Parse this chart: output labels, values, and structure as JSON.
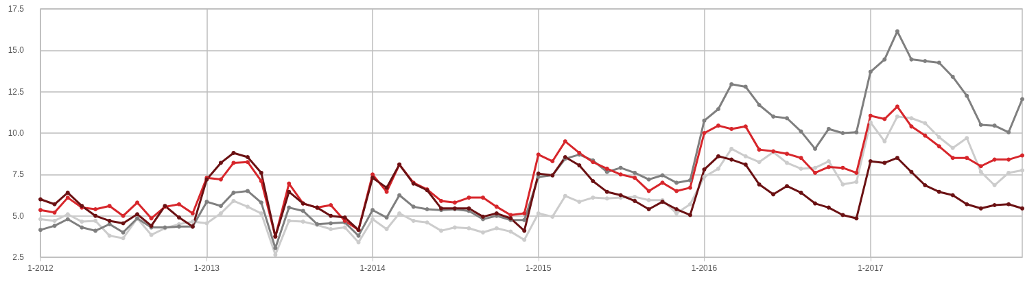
{
  "chart_data": {
    "type": "line",
    "x": [
      "2012-01",
      "2012-02",
      "2012-03",
      "2012-04",
      "2012-05",
      "2012-06",
      "2012-07",
      "2012-08",
      "2012-09",
      "2012-10",
      "2012-11",
      "2012-12",
      "2013-01",
      "2013-02",
      "2013-03",
      "2013-04",
      "2013-05",
      "2013-06",
      "2013-07",
      "2013-08",
      "2013-09",
      "2013-10",
      "2013-11",
      "2013-12",
      "2014-01",
      "2014-02",
      "2014-03",
      "2014-04",
      "2014-05",
      "2014-06",
      "2014-07",
      "2014-08",
      "2014-09",
      "2014-10",
      "2014-11",
      "2014-12",
      "2015-01",
      "2015-02",
      "2015-03",
      "2015-04",
      "2015-05",
      "2015-06",
      "2015-07",
      "2015-08",
      "2015-09",
      "2015-10",
      "2015-11",
      "2015-12",
      "2016-01",
      "2016-02",
      "2016-03",
      "2016-04",
      "2016-05",
      "2016-06",
      "2016-07",
      "2016-08",
      "2016-09",
      "2016-10",
      "2016-11",
      "2016-12",
      "2017-01",
      "2017-02",
      "2017-03",
      "2017-04",
      "2017-05",
      "2017-06",
      "2017-07",
      "2017-08",
      "2017-09",
      "2017-10",
      "2017-11",
      "2017-12"
    ],
    "series": [
      {
        "color": "#cccccc",
        "values": [
          4.8,
          4.7,
          5.1,
          4.65,
          4.7,
          3.8,
          3.65,
          4.85,
          3.85,
          4.25,
          4.5,
          4.65,
          4.55,
          5.15,
          5.9,
          5.55,
          5.15,
          2.65,
          4.7,
          4.65,
          4.45,
          4.2,
          4.3,
          3.4,
          4.8,
          4.2,
          5.15,
          4.7,
          4.6,
          4.1,
          4.3,
          4.25,
          4.0,
          4.25,
          4.05,
          3.55,
          5.15,
          4.95,
          6.2,
          5.85,
          6.1,
          6.05,
          6.1,
          6.15,
          5.95,
          5.95,
          5.15,
          5.7,
          7.35,
          7.85,
          9.05,
          8.6,
          8.25,
          8.85,
          8.2,
          7.85,
          7.9,
          8.3,
          6.9,
          7.05,
          10.65,
          9.5,
          11.0,
          10.9,
          10.6,
          9.75,
          9.1,
          9.7,
          7.65,
          6.85,
          7.6,
          7.75
        ]
      },
      {
        "color": "#7f7f7f",
        "values": [
          4.15,
          4.4,
          4.8,
          4.3,
          4.1,
          4.5,
          4.0,
          4.85,
          4.3,
          4.3,
          4.35,
          4.35,
          5.85,
          5.6,
          6.4,
          6.5,
          5.8,
          3.05,
          5.5,
          5.3,
          4.5,
          4.55,
          4.6,
          3.8,
          5.35,
          4.9,
          6.25,
          5.55,
          5.4,
          5.35,
          5.4,
          5.3,
          4.8,
          5.0,
          4.75,
          4.75,
          7.35,
          7.45,
          8.45,
          8.7,
          8.35,
          7.65,
          7.9,
          7.6,
          7.2,
          7.45,
          7.0,
          7.15,
          10.75,
          11.45,
          12.95,
          12.8,
          11.7,
          11.0,
          10.9,
          10.1,
          9.05,
          10.25,
          10.0,
          10.05,
          13.7,
          14.45,
          16.15,
          14.45,
          14.35,
          14.25,
          13.4,
          12.25,
          10.5,
          10.45,
          10.05,
          12.05
        ]
      },
      {
        "color": "#d7262b",
        "values": [
          5.35,
          5.2,
          6.1,
          5.5,
          5.4,
          5.6,
          5.0,
          5.8,
          4.85,
          5.55,
          5.7,
          5.15,
          7.3,
          7.2,
          8.2,
          8.25,
          7.1,
          3.75,
          6.95,
          5.75,
          5.5,
          5.65,
          4.7,
          4.15,
          7.5,
          6.45,
          8.1,
          7.0,
          6.6,
          5.9,
          5.8,
          6.1,
          6.1,
          5.55,
          5.05,
          5.15,
          8.7,
          8.3,
          9.5,
          8.8,
          8.25,
          7.85,
          7.5,
          7.3,
          6.5,
          7.0,
          6.5,
          6.7,
          10.0,
          10.45,
          10.25,
          10.4,
          9.0,
          8.9,
          8.75,
          8.5,
          7.6,
          7.95,
          7.9,
          7.6,
          11.05,
          10.85,
          11.6,
          10.4,
          9.85,
          9.2,
          8.5,
          8.5,
          8.0,
          8.4,
          8.4,
          8.65
        ]
      },
      {
        "color": "#6b1113",
        "values": [
          6.0,
          5.7,
          6.4,
          5.6,
          5.0,
          4.7,
          4.55,
          5.1,
          4.4,
          5.6,
          4.9,
          4.35,
          7.2,
          8.2,
          8.8,
          8.55,
          7.6,
          3.75,
          6.45,
          5.75,
          5.5,
          5.0,
          4.9,
          4.15,
          7.3,
          6.7,
          8.1,
          6.95,
          6.55,
          5.45,
          5.45,
          5.45,
          4.95,
          5.15,
          4.85,
          4.1,
          7.55,
          7.45,
          8.55,
          8.05,
          7.1,
          6.45,
          6.25,
          5.9,
          5.4,
          5.85,
          5.4,
          5.05,
          7.8,
          8.6,
          8.4,
          8.1,
          6.9,
          6.3,
          6.8,
          6.4,
          5.75,
          5.5,
          5.05,
          4.85,
          8.3,
          8.2,
          8.5,
          7.65,
          6.85,
          6.45,
          6.25,
          5.7,
          5.45,
          5.65,
          5.7,
          5.45
        ]
      }
    ],
    "xlim": [
      "2012-01",
      "2017-12"
    ],
    "xticks": [
      {
        "value": "2012-01",
        "label": "1-2012"
      },
      {
        "value": "2013-01",
        "label": "1-2013"
      },
      {
        "value": "2014-01",
        "label": "1-2014"
      },
      {
        "value": "2015-01",
        "label": "1-2015"
      },
      {
        "value": "2016-01",
        "label": "1-2016"
      },
      {
        "value": "2017-01",
        "label": "1-2017"
      }
    ],
    "ylim": [
      2.5,
      17.5
    ],
    "yticks": [
      2.5,
      {
        "value": 5,
        "label": "5.0"
      },
      7.5,
      {
        "value": 10,
        "label": "10.0"
      },
      12.5,
      {
        "value": 15,
        "label": "15.0"
      },
      17.5
    ],
    "grid": true,
    "marker": "circle",
    "line_style": "solid"
  }
}
